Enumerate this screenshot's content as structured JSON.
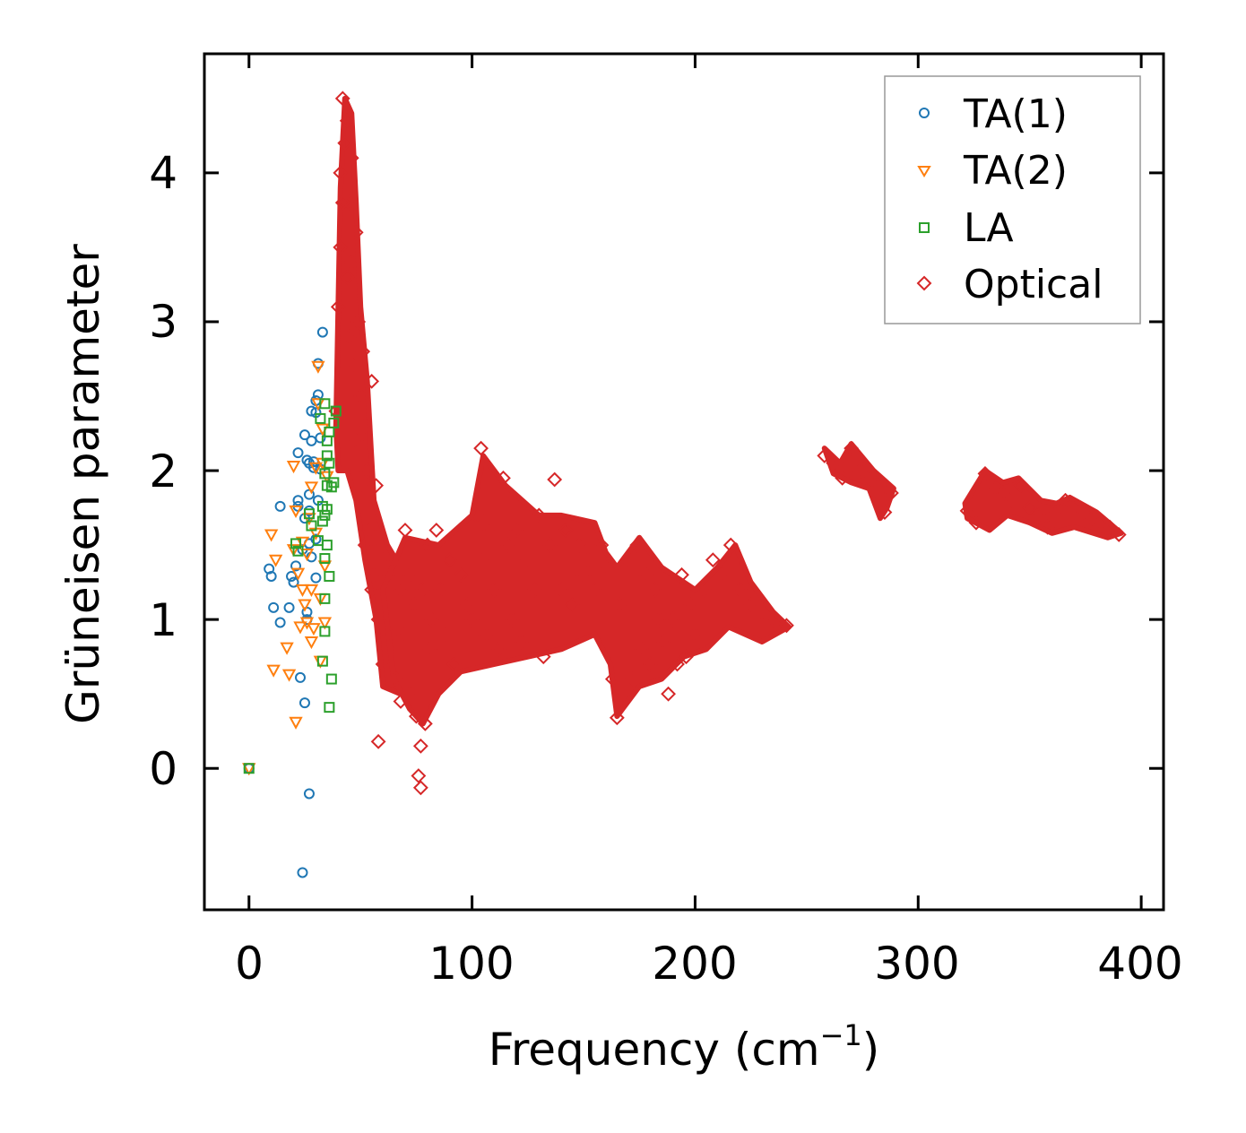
{
  "chart_data": {
    "type": "scatter",
    "title": "",
    "xlabel": "Frequency (cm",
    "xlabel_sup": "−1",
    "xlabel_end": ")",
    "ylabel": "Grüneisen parameter",
    "xlim": [
      -20,
      410
    ],
    "ylim": [
      -0.95,
      4.8
    ],
    "xticks": [
      "0",
      "100",
      "200",
      "300",
      "400"
    ],
    "yticks": [
      "0",
      "1",
      "2",
      "3",
      "4"
    ],
    "legend_position": "top-right",
    "series": [
      {
        "name": "TA(1)",
        "marker": "circle",
        "color": "#1f77b4",
        "points": [
          [
            0,
            0
          ],
          [
            9,
            1.34
          ],
          [
            10,
            1.29
          ],
          [
            11,
            1.08
          ],
          [
            14,
            1.76
          ],
          [
            14,
            0.98
          ],
          [
            18,
            1.08
          ],
          [
            19,
            1.29
          ],
          [
            20,
            1.25
          ],
          [
            21,
            1.36
          ],
          [
            22,
            1.8
          ],
          [
            22,
            1.76
          ],
          [
            23,
            0.61
          ],
          [
            22,
            2.12
          ],
          [
            24,
            1.47
          ],
          [
            25,
            0.44
          ],
          [
            25,
            2.24
          ],
          [
            26,
            1.05
          ],
          [
            26,
            1.0
          ],
          [
            26,
            2.07
          ],
          [
            27,
            1.84
          ],
          [
            27,
            1.51
          ],
          [
            27,
            1.73
          ],
          [
            27,
            -0.17
          ],
          [
            27,
            2.05
          ],
          [
            28,
            2.2
          ],
          [
            28,
            2.4
          ],
          [
            29,
            2.02
          ],
          [
            29,
            2.06
          ],
          [
            30,
            2.47
          ],
          [
            30,
            2.39
          ],
          [
            30,
            1.28
          ],
          [
            31,
            1.8
          ],
          [
            31,
            2.72
          ],
          [
            31,
            2.51
          ],
          [
            32,
            2.01
          ],
          [
            33,
            2.93
          ],
          [
            24,
            -0.7
          ],
          [
            28,
            1.42
          ],
          [
            25,
            1.68
          ],
          [
            30,
            1.54
          ],
          [
            32,
            2.22
          ]
        ]
      },
      {
        "name": "TA(2)",
        "marker": "triangle-down",
        "color": "#ff7f0e",
        "points": [
          [
            0,
            0
          ],
          [
            10,
            1.57
          ],
          [
            11,
            0.66
          ],
          [
            12,
            1.4
          ],
          [
            17,
            0.81
          ],
          [
            18,
            0.63
          ],
          [
            20,
            1.47
          ],
          [
            20,
            2.03
          ],
          [
            21,
            0.31
          ],
          [
            21,
            1.73
          ],
          [
            23,
            0.95
          ],
          [
            24,
            1.2
          ],
          [
            24,
            1.52
          ],
          [
            25,
            1.1
          ],
          [
            26,
            0.98
          ],
          [
            27,
            1.68
          ],
          [
            28,
            0.85
          ],
          [
            28,
            1.89
          ],
          [
            28,
            1.2
          ],
          [
            29,
            0.94
          ],
          [
            30,
            2.02
          ],
          [
            30,
            1.58
          ],
          [
            31,
            2.7
          ],
          [
            31,
            2.45
          ],
          [
            32,
            0.72
          ],
          [
            32,
            1.14
          ],
          [
            33,
            2.28
          ],
          [
            33,
            2.05
          ],
          [
            34,
            1.36
          ],
          [
            35,
            1.96
          ],
          [
            34,
            0.98
          ],
          [
            22,
            1.31
          ],
          [
            26,
            1.44
          ]
        ]
      },
      {
        "name": "LA",
        "marker": "square",
        "color": "#2ca02c",
        "points": [
          [
            0,
            0
          ],
          [
            21,
            1.51
          ],
          [
            22,
            1.46
          ],
          [
            27,
            1.71
          ],
          [
            28,
            1.63
          ],
          [
            31,
            1.53
          ],
          [
            32,
            2.35
          ],
          [
            33,
            0.72
          ],
          [
            33,
            1.66
          ],
          [
            34,
            1.41
          ],
          [
            34,
            1.14
          ],
          [
            34,
            0.92
          ],
          [
            34,
            2.45
          ],
          [
            34,
            1.98
          ],
          [
            35,
            1.9
          ],
          [
            35,
            1.74
          ],
          [
            35,
            1.5
          ],
          [
            36,
            0.41
          ],
          [
            36,
            1.29
          ],
          [
            36,
            2.26
          ],
          [
            37,
            0.6
          ],
          [
            37,
            1.89
          ],
          [
            38,
            2.32
          ],
          [
            39,
            2.4
          ],
          [
            34,
            1.7
          ],
          [
            35,
            2.1
          ],
          [
            36,
            2.05
          ],
          [
            38,
            1.92
          ],
          [
            33,
            1.76
          ],
          [
            35,
            2.2
          ]
        ]
      },
      {
        "name": "Optical",
        "marker": "diamond",
        "color": "#d62728",
        "points": [
          [
            39,
            2.4
          ],
          [
            40,
            3.1
          ],
          [
            41,
            4.0
          ],
          [
            41,
            3.5
          ],
          [
            42,
            4.5
          ],
          [
            42,
            3.8
          ],
          [
            43,
            4.2
          ],
          [
            44,
            4.35
          ],
          [
            44,
            3.3
          ],
          [
            45,
            3.8
          ],
          [
            45,
            2.9
          ],
          [
            46,
            3.4
          ],
          [
            46,
            4.1
          ],
          [
            47,
            2.7
          ],
          [
            48,
            3.6
          ],
          [
            48,
            2.2
          ],
          [
            49,
            3.0
          ],
          [
            50,
            2.5
          ],
          [
            50,
            1.9
          ],
          [
            51,
            2.8
          ],
          [
            52,
            2.3
          ],
          [
            52,
            1.5
          ],
          [
            53,
            2.0
          ],
          [
            54,
            1.6
          ],
          [
            55,
            2.6
          ],
          [
            55,
            1.2
          ],
          [
            56,
            1.3
          ],
          [
            57,
            1.9
          ],
          [
            58,
            1.0
          ],
          [
            58,
            0.18
          ],
          [
            60,
            1.5
          ],
          [
            60,
            0.7
          ],
          [
            62,
            1.3
          ],
          [
            63,
            0.9
          ],
          [
            65,
            1.4
          ],
          [
            66,
            0.6
          ],
          [
            68,
            1.2
          ],
          [
            68,
            0.45
          ],
          [
            70,
            1.6
          ],
          [
            70,
            0.9
          ],
          [
            72,
            1.3
          ],
          [
            72,
            0.5
          ],
          [
            74,
            1.1
          ],
          [
            75,
            0.35
          ],
          [
            76,
            -0.05
          ],
          [
            77,
            0.15
          ],
          [
            77,
            -0.13
          ],
          [
            78,
            1.2
          ],
          [
            79,
            0.3
          ],
          [
            80,
            1.5
          ],
          [
            81,
            0.8
          ],
          [
            82,
            1.0
          ],
          [
            84,
            1.6
          ],
          [
            86,
            1.2
          ],
          [
            88,
            0.9
          ],
          [
            90,
            1.4
          ],
          [
            92,
            0.7
          ],
          [
            95,
            1.3
          ],
          [
            98,
            1.1
          ],
          [
            100,
            1.0
          ],
          [
            102,
            1.7
          ],
          [
            104,
            2.15
          ],
          [
            105,
            1.4
          ],
          [
            106,
            0.9
          ],
          [
            108,
            1.6
          ],
          [
            110,
            1.2
          ],
          [
            112,
            0.8
          ],
          [
            114,
            1.95
          ],
          [
            116,
            1.5
          ],
          [
            118,
            1.0
          ],
          [
            120,
            1.6
          ],
          [
            122,
            0.85
          ],
          [
            125,
            1.4
          ],
          [
            128,
            1.2
          ],
          [
            130,
            1.7
          ],
          [
            132,
            0.75
          ],
          [
            135,
            1.5
          ],
          [
            137,
            1.94
          ],
          [
            140,
            1.2
          ],
          [
            142,
            1.6
          ],
          [
            145,
            1.1
          ],
          [
            148,
            1.5
          ],
          [
            150,
            1.3
          ],
          [
            152,
            1.4
          ],
          [
            155,
            1.2
          ],
          [
            158,
            1.5
          ],
          [
            160,
            1.35
          ],
          [
            163,
            0.6
          ],
          [
            165,
            0.34
          ],
          [
            166,
            1.1
          ],
          [
            168,
            0.5
          ],
          [
            170,
            1.4
          ],
          [
            172,
            0.6
          ],
          [
            174,
            1.5
          ],
          [
            176,
            0.8
          ],
          [
            178,
            1.3
          ],
          [
            180,
            0.7
          ],
          [
            182,
            1.2
          ],
          [
            184,
            1.0
          ],
          [
            186,
            0.85
          ],
          [
            188,
            0.5
          ],
          [
            190,
            1.0
          ],
          [
            192,
            0.7
          ],
          [
            194,
            1.3
          ],
          [
            196,
            0.75
          ],
          [
            198,
            1.1
          ],
          [
            200,
            0.9
          ],
          [
            204,
            1.2
          ],
          [
            208,
            1.4
          ],
          [
            212,
            1.3
          ],
          [
            216,
            1.5
          ],
          [
            220,
            1.2
          ],
          [
            225,
            1.1
          ],
          [
            230,
            1.05
          ],
          [
            235,
            1.0
          ],
          [
            241,
            0.96
          ],
          [
            258,
            2.1
          ],
          [
            262,
            2.05
          ],
          [
            266,
            1.95
          ],
          [
            270,
            2.15
          ],
          [
            274,
            2.0
          ],
          [
            278,
            1.95
          ],
          [
            282,
            1.9
          ],
          [
            285,
            1.72
          ],
          [
            288,
            1.85
          ],
          [
            322,
            1.73
          ],
          [
            326,
            1.65
          ],
          [
            330,
            1.98
          ],
          [
            334,
            1.88
          ],
          [
            338,
            1.85
          ],
          [
            342,
            1.8
          ],
          [
            346,
            1.9
          ],
          [
            350,
            1.75
          ],
          [
            354,
            1.7
          ],
          [
            358,
            1.62
          ],
          [
            362,
            1.72
          ],
          [
            366,
            1.8
          ],
          [
            370,
            1.76
          ],
          [
            374,
            1.72
          ],
          [
            378,
            1.68
          ],
          [
            382,
            1.65
          ],
          [
            386,
            1.62
          ],
          [
            390,
            1.57
          ]
        ]
      }
    ]
  }
}
